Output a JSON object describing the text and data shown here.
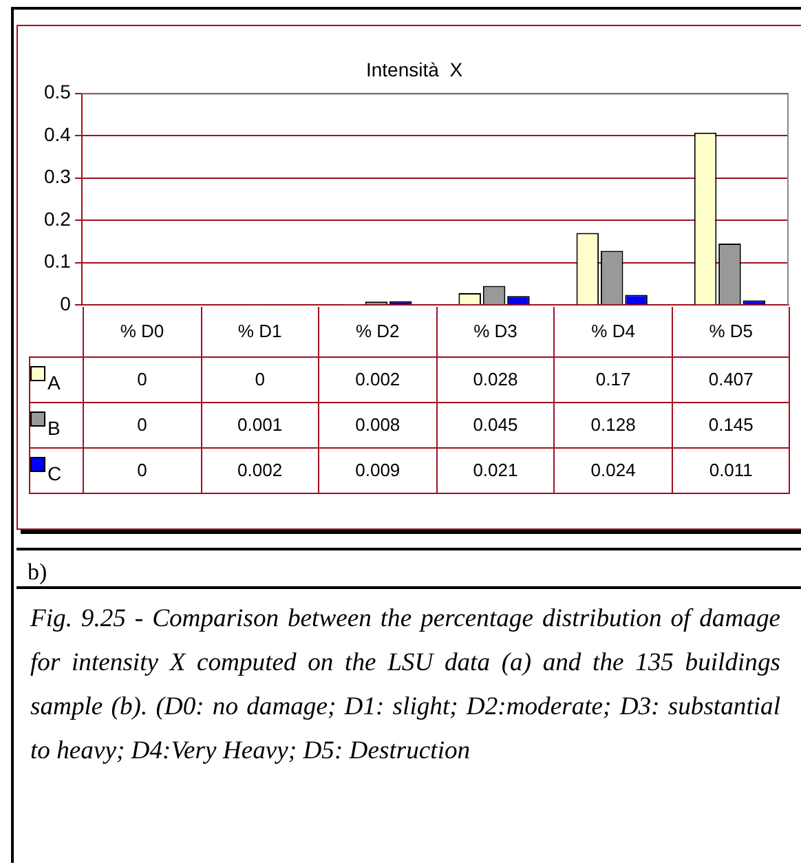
{
  "chart_data": {
    "type": "bar",
    "title": "Intensità  X",
    "categories": [
      "% D0",
      "% D1",
      "% D2",
      "% D3",
      "% D4",
      "% D5"
    ],
    "series": [
      {
        "name": "A",
        "color": "#ffffcc",
        "values": [
          0,
          0,
          0.002,
          0.028,
          0.17,
          0.407
        ]
      },
      {
        "name": "B",
        "color": "#999999",
        "values": [
          0,
          0.001,
          0.008,
          0.045,
          0.128,
          0.145
        ]
      },
      {
        "name": "C",
        "color": "#0000ff",
        "values": [
          0,
          0.002,
          0.009,
          0.021,
          0.024,
          0.011
        ]
      }
    ],
    "ylim": [
      0,
      0.5
    ],
    "yticks": [
      0,
      0.1,
      0.2,
      0.3,
      0.4,
      0.5
    ],
    "grid": "y",
    "legend": "bottom left",
    "data_labels": true,
    "annotations": [
      "b)",
      "Fig. 9.25 - Comparison between the percentage distribution of damage for intensity X computed on the LSU data (a) and the 135 buildings sample (b). (D0: no damage; D1: slight; D2:moderate; D3: substantial to heavy; D4:Very Heavy; D5: Destruction"
    ]
  }
}
